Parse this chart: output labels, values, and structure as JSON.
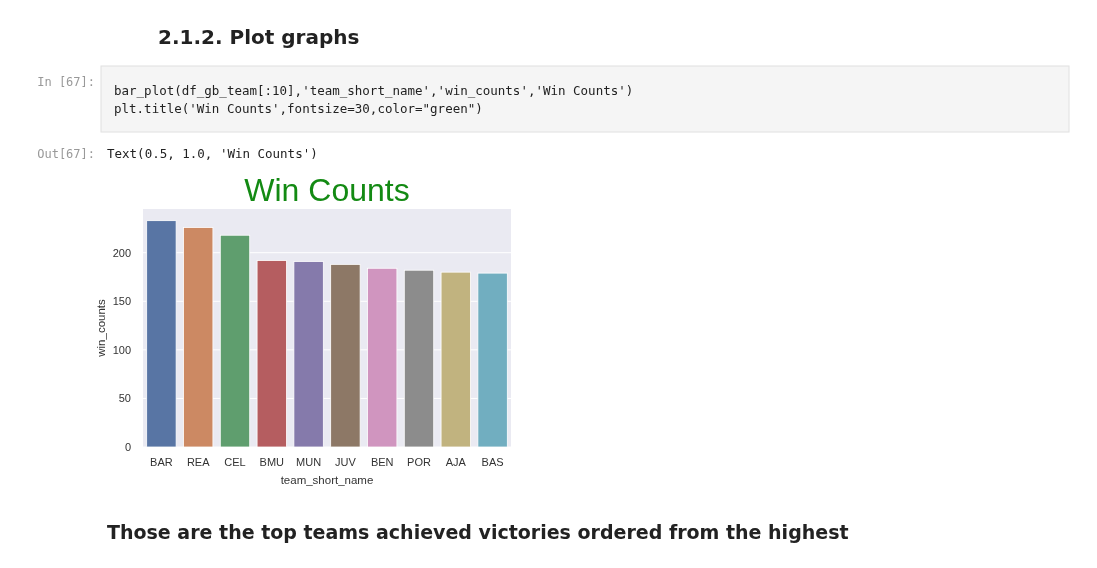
{
  "chart_data": {
    "type": "bar",
    "title": "Win Counts",
    "xlabel": "team_short_name",
    "ylabel": "win_counts",
    "categories": [
      "BAR",
      "REA",
      "CEL",
      "BMU",
      "MUN",
      "JUV",
      "BEN",
      "POR",
      "AJA",
      "BAS"
    ],
    "values": [
      233,
      226,
      218,
      192,
      191,
      188,
      184,
      182,
      180,
      179
    ],
    "colors": [
      "#5875a4",
      "#cc8963",
      "#5f9e6e",
      "#b55d60",
      "#857aab",
      "#8d7866",
      "#d095bf",
      "#8c8c8c",
      "#c1b37f",
      "#71aec0"
    ],
    "ylim": [
      0,
      245
    ],
    "yticks": [
      0,
      50,
      100,
      150,
      200
    ],
    "grid": "y",
    "annotations": [
      "2.1.2. Plot graphs",
      "In [67]:",
      "bar_plot(df_gb_team[:10],'team_short_name','win_counts','Win Counts')",
      "plt.title('Win Counts',fontsize=30,color=\"green\")",
      "Out[67]:",
      "Text(0.5, 1.0, 'Win Counts')",
      "Those are the top teams achieved victories ordered from the highest"
    ]
  }
}
